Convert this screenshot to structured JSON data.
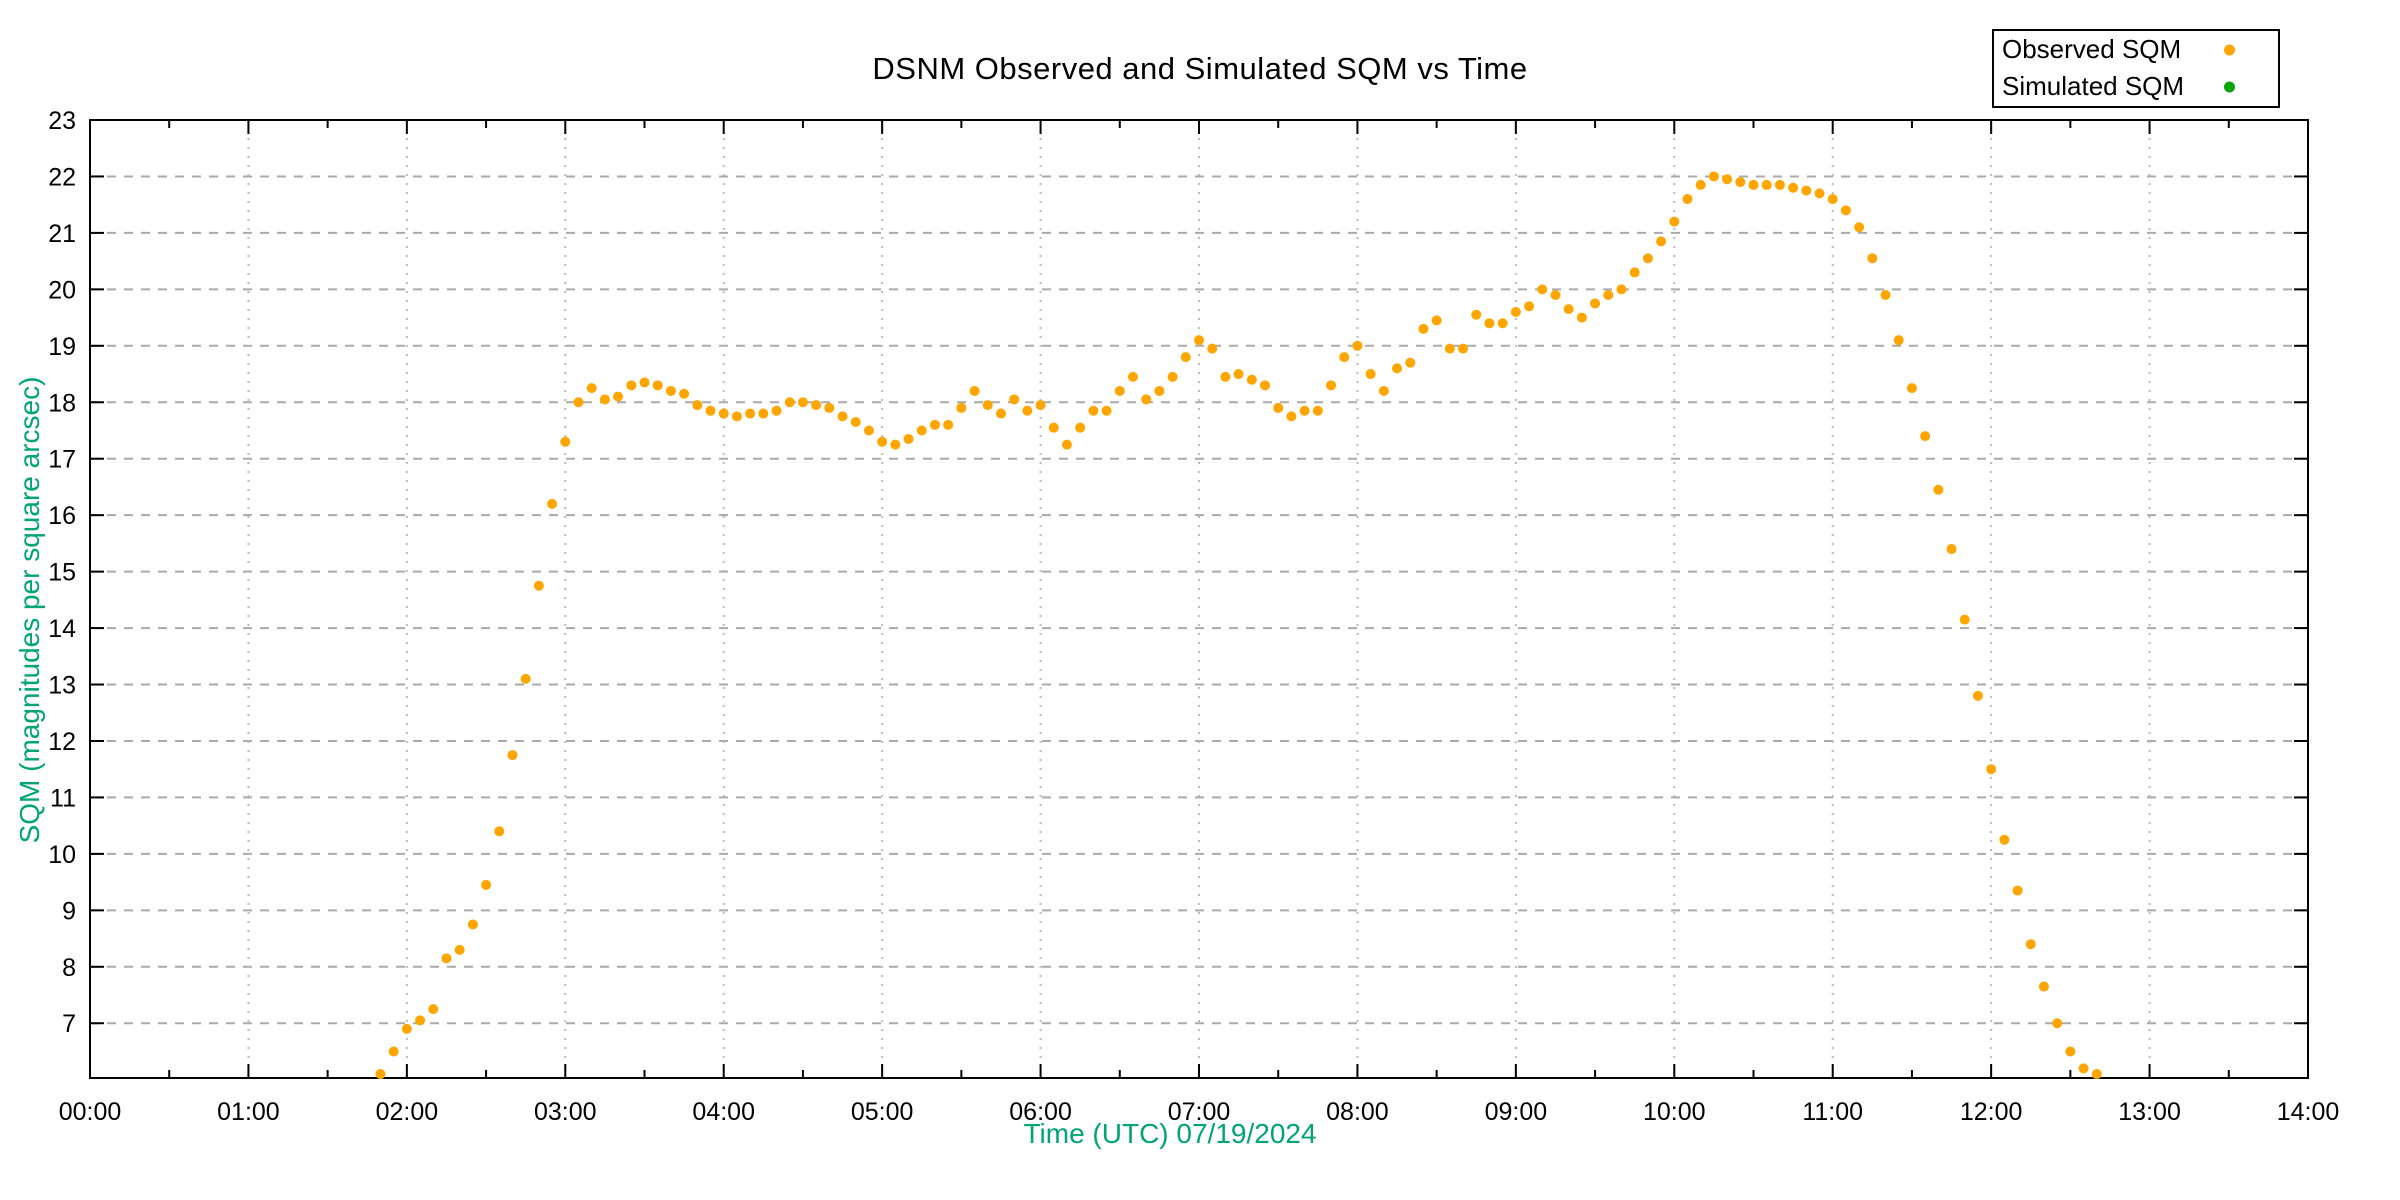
{
  "chart": {
    "title": "DSNM Observed and Simulated SQM vs Time",
    "x_axis_label": "Time (UTC)   07/19/2024",
    "y_axis_label": "SQM (magnitudes per square arcsec)",
    "axis_label_color": "#00A572",
    "border_color": "#000000",
    "grid_dashed_color": "#aaaaaa",
    "grid_dotted_color": "#bbbbbb"
  },
  "legend": {
    "items": [
      {
        "label": "Observed SQM",
        "color": "#FFA500"
      },
      {
        "label": "Simulated SQM",
        "color": "#09A509"
      }
    ]
  },
  "chart_data": {
    "type": "scatter",
    "title": "DSNM Observed and Simulated SQM vs Time",
    "xlabel": "Time (UTC)   07/19/2024",
    "ylabel": "SQM (magnitudes per square arcsec)",
    "grid": true,
    "legend_position": "top-right",
    "xlim_hours": [
      0,
      14
    ],
    "ylim": [
      6.03,
      23
    ],
    "x_tick_labels": [
      "00:00",
      "01:00",
      "02:00",
      "03:00",
      "04:00",
      "05:00",
      "06:00",
      "07:00",
      "08:00",
      "09:00",
      "10:00",
      "11:00",
      "12:00",
      "13:00",
      "14:00"
    ],
    "y_ticks": [
      7,
      8,
      9,
      10,
      11,
      12,
      13,
      14,
      15,
      16,
      17,
      18,
      19,
      20,
      21,
      22,
      23
    ],
    "series": [
      {
        "name": "Observed SQM",
        "color": "#FFA500",
        "points": [
          [
            "01:50",
            6.1
          ],
          [
            "01:55",
            6.5
          ],
          [
            "02:00",
            6.9
          ],
          [
            "02:05",
            7.05
          ],
          [
            "02:10",
            7.25
          ],
          [
            "02:15",
            8.15
          ],
          [
            "02:20",
            8.3
          ],
          [
            "02:25",
            8.75
          ],
          [
            "02:30",
            9.45
          ],
          [
            "02:35",
            10.4
          ],
          [
            "02:40",
            11.75
          ],
          [
            "02:45",
            13.1
          ],
          [
            "02:50",
            14.75
          ],
          [
            "02:55",
            16.2
          ],
          [
            "03:00",
            17.3
          ],
          [
            "03:05",
            18.0
          ],
          [
            "03:10",
            18.25
          ],
          [
            "03:15",
            18.05
          ],
          [
            "03:20",
            18.1
          ],
          [
            "03:25",
            18.3
          ],
          [
            "03:30",
            18.35
          ],
          [
            "03:35",
            18.3
          ],
          [
            "03:40",
            18.2
          ],
          [
            "03:45",
            18.15
          ],
          [
            "03:50",
            17.95
          ],
          [
            "03:55",
            17.85
          ],
          [
            "04:00",
            17.8
          ],
          [
            "04:05",
            17.75
          ],
          [
            "04:10",
            17.8
          ],
          [
            "04:15",
            17.8
          ],
          [
            "04:20",
            17.85
          ],
          [
            "04:25",
            18.0
          ],
          [
            "04:30",
            18.0
          ],
          [
            "04:35",
            17.95
          ],
          [
            "04:40",
            17.9
          ],
          [
            "04:45",
            17.75
          ],
          [
            "04:50",
            17.65
          ],
          [
            "04:55",
            17.5
          ],
          [
            "05:00",
            17.3
          ],
          [
            "05:05",
            17.25
          ],
          [
            "05:10",
            17.35
          ],
          [
            "05:15",
            17.5
          ],
          [
            "05:20",
            17.6
          ],
          [
            "05:25",
            17.6
          ],
          [
            "05:30",
            17.9
          ],
          [
            "05:35",
            18.2
          ],
          [
            "05:40",
            17.95
          ],
          [
            "05:45",
            17.8
          ],
          [
            "05:50",
            18.05
          ],
          [
            "05:55",
            17.85
          ],
          [
            "06:00",
            17.95
          ],
          [
            "06:05",
            17.55
          ],
          [
            "06:10",
            17.25
          ],
          [
            "06:15",
            17.55
          ],
          [
            "06:20",
            17.85
          ],
          [
            "06:25",
            17.85
          ],
          [
            "06:30",
            18.2
          ],
          [
            "06:35",
            18.45
          ],
          [
            "06:40",
            18.05
          ],
          [
            "06:45",
            18.2
          ],
          [
            "06:50",
            18.45
          ],
          [
            "06:55",
            18.8
          ],
          [
            "07:00",
            19.1
          ],
          [
            "07:05",
            18.95
          ],
          [
            "07:10",
            18.45
          ],
          [
            "07:15",
            18.5
          ],
          [
            "07:20",
            18.4
          ],
          [
            "07:25",
            18.3
          ],
          [
            "07:30",
            17.9
          ],
          [
            "07:35",
            17.75
          ],
          [
            "07:40",
            17.85
          ],
          [
            "07:45",
            17.85
          ],
          [
            "07:50",
            18.3
          ],
          [
            "07:55",
            18.8
          ],
          [
            "08:00",
            19.0
          ],
          [
            "08:05",
            18.5
          ],
          [
            "08:10",
            18.2
          ],
          [
            "08:15",
            18.6
          ],
          [
            "08:20",
            18.7
          ],
          [
            "08:25",
            19.3
          ],
          [
            "08:30",
            19.45
          ],
          [
            "08:35",
            18.95
          ],
          [
            "08:40",
            18.95
          ],
          [
            "08:45",
            19.55
          ],
          [
            "08:50",
            19.4
          ],
          [
            "08:55",
            19.4
          ],
          [
            "09:00",
            19.6
          ],
          [
            "09:05",
            19.7
          ],
          [
            "09:10",
            20.0
          ],
          [
            "09:15",
            19.9
          ],
          [
            "09:20",
            19.65
          ],
          [
            "09:25",
            19.5
          ],
          [
            "09:30",
            19.75
          ],
          [
            "09:35",
            19.9
          ],
          [
            "09:40",
            20.0
          ],
          [
            "09:45",
            20.3
          ],
          [
            "09:50",
            20.55
          ],
          [
            "09:55",
            20.85
          ],
          [
            "10:00",
            21.2
          ],
          [
            "10:05",
            21.6
          ],
          [
            "10:10",
            21.85
          ],
          [
            "10:15",
            22.0
          ],
          [
            "10:20",
            21.95
          ],
          [
            "10:25",
            21.9
          ],
          [
            "10:30",
            21.85
          ],
          [
            "10:35",
            21.85
          ],
          [
            "10:40",
            21.85
          ],
          [
            "10:45",
            21.8
          ],
          [
            "10:50",
            21.75
          ],
          [
            "10:55",
            21.7
          ],
          [
            "11:00",
            21.6
          ],
          [
            "11:05",
            21.4
          ],
          [
            "11:10",
            21.1
          ],
          [
            "11:15",
            20.55
          ],
          [
            "11:20",
            19.9
          ],
          [
            "11:25",
            19.1
          ],
          [
            "11:30",
            18.25
          ],
          [
            "11:35",
            17.4
          ],
          [
            "11:40",
            16.45
          ],
          [
            "11:45",
            15.4
          ],
          [
            "11:50",
            14.15
          ],
          [
            "11:55",
            12.8
          ],
          [
            "12:00",
            11.5
          ],
          [
            "12:05",
            10.25
          ],
          [
            "12:10",
            9.35
          ],
          [
            "12:15",
            8.4
          ],
          [
            "12:20",
            7.65
          ],
          [
            "12:25",
            7.0
          ],
          [
            "12:30",
            6.5
          ],
          [
            "12:35",
            6.2
          ],
          [
            "12:40",
            6.1
          ]
        ]
      },
      {
        "name": "Simulated SQM",
        "color": "#09A509",
        "points": []
      }
    ]
  }
}
